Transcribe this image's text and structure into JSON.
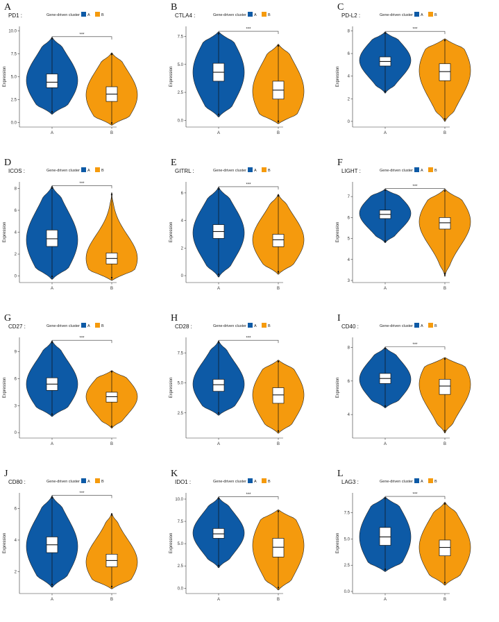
{
  "colors": {
    "A": "#0d5aa6",
    "B": "#f59a0d"
  },
  "chart_data": [
    {
      "type": "violin",
      "panel": "A",
      "title": "PD1 :",
      "legend_title": "Gene-driven cluster",
      "ylabel": "Expression",
      "categories": [
        "A",
        "B"
      ],
      "ylim": [
        -0.5,
        10.5
      ],
      "yticks": [
        "0.0",
        "2.5",
        "5.0",
        "7.5",
        "10.0"
      ],
      "ytick_values": [
        0,
        2.5,
        5,
        7.5,
        10
      ],
      "significance": "***",
      "series": [
        {
          "name": "A",
          "min": 0.9,
          "q1": 3.8,
          "median": 4.4,
          "q3": 5.3,
          "max": 9.3,
          "mode": 4.6
        },
        {
          "name": "B",
          "min": -0.3,
          "q1": 2.3,
          "median": 3.1,
          "q3": 3.9,
          "max": 7.6,
          "mode": 3.0
        }
      ]
    },
    {
      "type": "violin",
      "panel": "B",
      "title": "CTLA4 :",
      "legend_title": "Gene-driven cluster",
      "ylabel": "Expression",
      "categories": [
        "A",
        "B"
      ],
      "ylim": [
        -0.6,
        8.4
      ],
      "yticks": [
        "0.0",
        "2.5",
        "5.0",
        "7.5"
      ],
      "ytick_values": [
        0,
        2.5,
        5,
        7.5
      ],
      "significance": "***",
      "series": [
        {
          "name": "A",
          "min": 0.3,
          "q1": 3.5,
          "median": 4.3,
          "q3": 5.1,
          "max": 7.9,
          "mode": 4.3
        },
        {
          "name": "B",
          "min": -0.3,
          "q1": 1.9,
          "median": 2.7,
          "q3": 3.5,
          "max": 6.8,
          "mode": 2.6
        }
      ]
    },
    {
      "type": "violin",
      "panel": "C",
      "title": "PD-L2 :",
      "legend_title": "Gene-driven cluster",
      "ylabel": "Expression",
      "categories": [
        "A",
        "B"
      ],
      "ylim": [
        -0.5,
        8.4
      ],
      "yticks": [
        "0",
        "2",
        "4",
        "6",
        "8"
      ],
      "ytick_values": [
        0,
        2,
        4,
        6,
        8
      ],
      "significance": "***",
      "series": [
        {
          "name": "A",
          "min": 2.5,
          "q1": 4.9,
          "median": 5.3,
          "q3": 5.7,
          "max": 7.9,
          "mode": 5.4
        },
        {
          "name": "B",
          "min": 0.0,
          "q1": 3.6,
          "median": 4.4,
          "q3": 5.1,
          "max": 7.3,
          "mode": 4.5
        }
      ]
    },
    {
      "type": "violin",
      "panel": "D",
      "title": "ICOS :",
      "legend_title": "Gene-driven cluster",
      "ylabel": "Expression",
      "categories": [
        "A",
        "B"
      ],
      "ylim": [
        -0.6,
        8.6
      ],
      "yticks": [
        "0",
        "2",
        "4",
        "6",
        "8"
      ],
      "ytick_values": [
        0,
        2,
        4,
        6,
        8
      ],
      "significance": "***",
      "series": [
        {
          "name": "A",
          "min": -0.3,
          "q1": 2.7,
          "median": 3.4,
          "q3": 4.2,
          "max": 8.2,
          "mode": 3.3
        },
        {
          "name": "B",
          "min": -0.4,
          "q1": 1.1,
          "median": 1.6,
          "q3": 2.1,
          "max": 7.6,
          "mode": 1.6
        }
      ]
    },
    {
      "type": "violin",
      "panel": "E",
      "title": "GITRL :",
      "legend_title": "Gene-driven cluster",
      "ylabel": "Expression",
      "categories": [
        "A",
        "B"
      ],
      "ylim": [
        -0.5,
        6.8
      ],
      "yticks": [
        "0",
        "2",
        "4",
        "6"
      ],
      "ytick_values": [
        0,
        2,
        4,
        6
      ],
      "significance": "***",
      "series": [
        {
          "name": "A",
          "min": -0.1,
          "q1": 2.7,
          "median": 3.2,
          "q3": 3.7,
          "max": 6.4,
          "mode": 3.1
        },
        {
          "name": "B",
          "min": 0.1,
          "q1": 2.1,
          "median": 2.6,
          "q3": 3.0,
          "max": 5.9,
          "mode": 2.6
        }
      ]
    },
    {
      "type": "violin",
      "panel": "F",
      "title": "LIGHT :",
      "legend_title": "Gene-driven cluster",
      "ylabel": "Expression",
      "categories": [
        "A",
        "B"
      ],
      "ylim": [
        2.9,
        7.7
      ],
      "yticks": [
        "3",
        "4",
        "5",
        "6",
        "7"
      ],
      "ytick_values": [
        3,
        4,
        5,
        6,
        7
      ],
      "significance": "***",
      "series": [
        {
          "name": "A",
          "min": 4.8,
          "q1": 5.95,
          "median": 6.15,
          "q3": 6.35,
          "max": 7.35,
          "mode": 6.2
        },
        {
          "name": "B",
          "min": 3.2,
          "q1": 5.45,
          "median": 5.75,
          "q3": 6.0,
          "max": 7.35,
          "mode": 5.8
        }
      ]
    },
    {
      "type": "violin",
      "panel": "G",
      "title": "CD27 :",
      "legend_title": "Gene-driven cluster",
      "ylabel": "Expression",
      "categories": [
        "A",
        "B"
      ],
      "ylim": [
        -0.6,
        10.6
      ],
      "yticks": [
        "0",
        "3",
        "6",
        "9"
      ],
      "ytick_values": [
        0,
        3,
        6,
        9
      ],
      "significance": "***",
      "series": [
        {
          "name": "A",
          "min": 1.8,
          "q1": 4.7,
          "median": 5.4,
          "q3": 6.1,
          "max": 10.2,
          "mode": 5.4
        },
        {
          "name": "B",
          "min": 0.5,
          "q1": 3.4,
          "median": 4.0,
          "q3": 4.5,
          "max": 6.9,
          "mode": 4.0
        }
      ]
    },
    {
      "type": "violin",
      "panel": "H",
      "title": "CD28 :",
      "legend_title": "Gene-driven cluster",
      "ylabel": "Expression",
      "categories": [
        "A",
        "B"
      ],
      "ylim": [
        0.4,
        8.8
      ],
      "yticks": [
        "2.5",
        "5.0",
        "7.5"
      ],
      "ytick_values": [
        2.5,
        5,
        7.5
      ],
      "significance": "***",
      "series": [
        {
          "name": "A",
          "min": 2.3,
          "q1": 4.3,
          "median": 4.85,
          "q3": 5.3,
          "max": 8.5,
          "mode": 4.9
        },
        {
          "name": "B",
          "min": 0.8,
          "q1": 3.3,
          "median": 4.0,
          "q3": 4.6,
          "max": 6.9,
          "mode": 4.0
        }
      ]
    },
    {
      "type": "violin",
      "panel": "I",
      "title": "CD40 :",
      "legend_title": "Gene-driven cluster",
      "ylabel": "Expression",
      "categories": [
        "A",
        "B"
      ],
      "ylim": [
        2.6,
        8.6
      ],
      "yticks": [
        "4",
        "6",
        "8"
      ],
      "ytick_values": [
        4,
        6,
        8
      ],
      "significance": "***",
      "series": [
        {
          "name": "A",
          "min": 4.4,
          "q1": 5.85,
          "median": 6.15,
          "q3": 6.45,
          "max": 8.0,
          "mode": 6.1
        },
        {
          "name": "B",
          "min": 2.9,
          "q1": 5.2,
          "median": 5.7,
          "q3": 6.1,
          "max": 7.4,
          "mode": 5.8
        }
      ]
    },
    {
      "type": "violin",
      "panel": "J",
      "title": "CD80 :",
      "legend_title": "Gene-driven cluster",
      "ylabel": "Expression",
      "categories": [
        "A",
        "B"
      ],
      "ylim": [
        0.6,
        7.0
      ],
      "yticks": [
        "2",
        "4",
        "6"
      ],
      "ytick_values": [
        2,
        4,
        6
      ],
      "significance": "***",
      "series": [
        {
          "name": "A",
          "min": 1.0,
          "q1": 3.2,
          "median": 3.7,
          "q3": 4.2,
          "max": 6.8,
          "mode": 3.6
        },
        {
          "name": "B",
          "min": 0.9,
          "q1": 2.3,
          "median": 2.7,
          "q3": 3.1,
          "max": 5.7,
          "mode": 2.6
        }
      ]
    },
    {
      "type": "violin",
      "panel": "K",
      "title": "IDO1 :",
      "legend_title": "Gene-driven cluster",
      "ylabel": "Expression",
      "categories": [
        "A",
        "B"
      ],
      "ylim": [
        -0.6,
        10.7
      ],
      "yticks": [
        "0.0",
        "2.5",
        "5.0",
        "7.5",
        "10.0"
      ],
      "ytick_values": [
        0,
        2.5,
        5,
        7.5,
        10
      ],
      "significance": "***",
      "series": [
        {
          "name": "A",
          "min": 2.3,
          "q1": 5.6,
          "median": 6.1,
          "q3": 6.7,
          "max": 10.2,
          "mode": 6.2
        },
        {
          "name": "B",
          "min": -0.2,
          "q1": 3.5,
          "median": 4.6,
          "q3": 5.6,
          "max": 8.8,
          "mode": 4.8
        }
      ]
    },
    {
      "type": "violin",
      "panel": "L",
      "title": "LAG3 :",
      "legend_title": "Gene-driven cluster",
      "ylabel": "Expression",
      "categories": [
        "A",
        "B"
      ],
      "ylim": [
        -0.2,
        9.4
      ],
      "yticks": [
        "0.0",
        "2.5",
        "5.0",
        "7.5"
      ],
      "ytick_values": [
        0,
        2.5,
        5,
        7.5
      ],
      "significance": "***",
      "series": [
        {
          "name": "A",
          "min": 1.9,
          "q1": 4.4,
          "median": 5.2,
          "q3": 6.1,
          "max": 9.0,
          "mode": 5.2
        },
        {
          "name": "B",
          "min": 0.6,
          "q1": 3.4,
          "median": 4.2,
          "q3": 4.9,
          "max": 8.5,
          "mode": 4.2
        }
      ]
    }
  ]
}
